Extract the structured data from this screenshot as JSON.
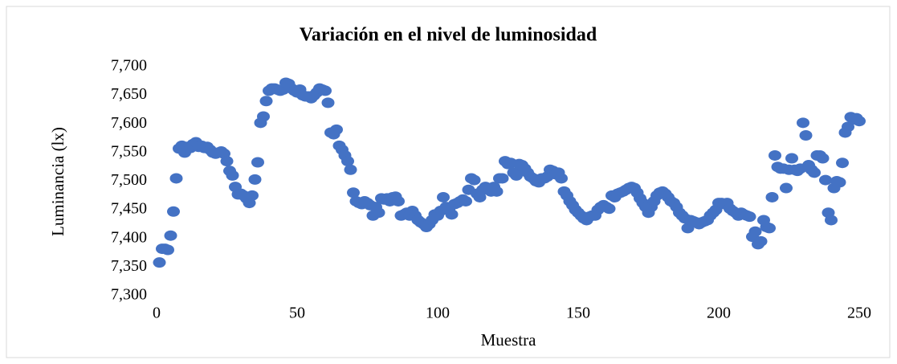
{
  "chart_data": {
    "type": "scatter",
    "title": "Variación en el nivel de luminosidad",
    "x_label": "Muestra",
    "y_label": "Luminancia (lx)",
    "color": "#4472c4",
    "xlim": [
      0,
      250
    ],
    "xticks": [
      0,
      50,
      100,
      150,
      200,
      250
    ],
    "ylim": [
      7300,
      7700
    ],
    "yticks": [
      {
        "value": 7300,
        "label": "7,300"
      },
      {
        "value": 7350,
        "label": "7,350"
      },
      {
        "value": 7400,
        "label": "7,400"
      },
      {
        "value": 7450,
        "label": "7,450"
      },
      {
        "value": 7500,
        "label": "7,500"
      },
      {
        "value": 7550,
        "label": "7,550"
      },
      {
        "value": 7600,
        "label": "7,600"
      },
      {
        "value": 7650,
        "label": "7,650"
      },
      {
        "value": 7700,
        "label": "7,700"
      }
    ],
    "grid": false,
    "x": [
      1,
      2,
      3,
      4,
      5,
      6,
      7,
      8,
      9,
      10,
      11,
      12,
      13,
      14,
      15,
      16,
      17,
      18,
      19,
      20,
      21,
      22,
      23,
      24,
      25,
      26,
      27,
      28,
      29,
      30,
      31,
      32,
      33,
      34,
      35,
      36,
      37,
      38,
      39,
      40,
      41,
      42,
      43,
      44,
      45,
      46,
      47,
      48,
      49,
      50,
      51,
      52,
      53,
      54,
      55,
      56,
      57,
      58,
      59,
      60,
      61,
      62,
      63,
      64,
      65,
      66,
      67,
      68,
      69,
      70,
      71,
      72,
      73,
      74,
      75,
      76,
      77,
      78,
      79,
      80,
      81,
      82,
      83,
      84,
      85,
      86,
      87,
      88,
      89,
      90,
      91,
      92,
      93,
      94,
      95,
      96,
      97,
      98,
      99,
      100,
      101,
      102,
      103,
      104,
      105,
      106,
      107,
      108,
      109,
      110,
      111,
      112,
      113,
      114,
      115,
      116,
      117,
      118,
      119,
      120,
      121,
      122,
      123,
      124,
      125,
      126,
      127,
      128,
      129,
      130,
      131,
      132,
      133,
      134,
      135,
      136,
      137,
      138,
      139,
      140,
      141,
      142,
      143,
      144,
      145,
      146,
      147,
      148,
      149,
      150,
      151,
      152,
      153,
      154,
      155,
      156,
      157,
      158,
      159,
      160,
      161,
      162,
      163,
      164,
      165,
      166,
      167,
      168,
      169,
      170,
      171,
      172,
      173,
      174,
      175,
      176,
      177,
      178,
      179,
      180,
      181,
      182,
      183,
      184,
      185,
      186,
      187,
      188,
      189,
      190,
      191,
      192,
      193,
      194,
      195,
      196,
      197,
      198,
      199,
      200,
      201,
      202,
      203,
      204,
      205,
      206,
      207,
      208,
      209,
      210,
      211,
      212,
      213,
      214,
      215,
      216,
      217,
      218,
      219,
      220,
      221,
      222,
      223,
      224,
      225,
      226,
      227,
      228,
      229,
      230,
      231,
      232,
      233,
      234,
      235,
      236,
      237,
      238,
      239,
      240,
      241,
      242,
      243,
      244,
      245,
      246,
      247,
      248,
      249,
      250
    ],
    "values": [
      7358,
      7382,
      7382,
      7380,
      7405,
      7447,
      7505,
      7557,
      7562,
      7550,
      7560,
      7558,
      7565,
      7568,
      7560,
      7562,
      7558,
      7560,
      7555,
      7550,
      7548,
      7550,
      7552,
      7548,
      7535,
      7518,
      7510,
      7490,
      7477,
      7478,
      7475,
      7470,
      7462,
      7475,
      7503,
      7533,
      7602,
      7613,
      7640,
      7658,
      7662,
      7662,
      7660,
      7658,
      7660,
      7672,
      7670,
      7662,
      7658,
      7655,
      7660,
      7650,
      7648,
      7648,
      7645,
      7650,
      7655,
      7662,
      7660,
      7658,
      7637,
      7585,
      7582,
      7590,
      7562,
      7555,
      7545,
      7535,
      7520,
      7480,
      7465,
      7462,
      7460,
      7465,
      7462,
      7458,
      7440,
      7455,
      7445,
      7470,
      7468,
      7470,
      7465,
      7472,
      7473,
      7465,
      7440,
      7442,
      7445,
      7440,
      7448,
      7440,
      7432,
      7428,
      7425,
      7420,
      7425,
      7432,
      7442,
      7440,
      7448,
      7472,
      7455,
      7450,
      7442,
      7460,
      7462,
      7465,
      7468,
      7465,
      7485,
      7505,
      7502,
      7478,
      7472,
      7485,
      7490,
      7488,
      7482,
      7490,
      7482,
      7505,
      7505,
      7535,
      7530,
      7532,
      7515,
      7510,
      7530,
      7528,
      7522,
      7515,
      7508,
      7505,
      7500,
      7498,
      7505,
      7505,
      7508,
      7520,
      7518,
      7512,
      7515,
      7505,
      7482,
      7475,
      7465,
      7458,
      7450,
      7445,
      7440,
      7435,
      7432,
      7438,
      7440,
      7440,
      7450,
      7455,
      7458,
      7455,
      7452,
      7475,
      7472,
      7478,
      7480,
      7482,
      7485,
      7488,
      7490,
      7488,
      7480,
      7470,
      7462,
      7455,
      7445,
      7455,
      7465,
      7475,
      7480,
      7482,
      7478,
      7472,
      7465,
      7462,
      7455,
      7445,
      7440,
      7435,
      7418,
      7432,
      7430,
      7428,
      7425,
      7428,
      7430,
      7432,
      7440,
      7445,
      7450,
      7462,
      7462,
      7460,
      7462,
      7452,
      7448,
      7445,
      7440,
      7445,
      7442,
      7440,
      7438,
      7403,
      7412,
      7390,
      7395,
      7432,
      7420,
      7418,
      7472,
      7545,
      7525,
      7522,
      7522,
      7488,
      7520,
      7540,
      7520,
      7518,
      7522,
      7602,
      7580,
      7528,
      7520,
      7515,
      7545,
      7545,
      7540,
      7502,
      7445,
      7432,
      7488,
      7500,
      7498,
      7532,
      7585,
      7595,
      7612,
      7608,
      7610,
      7605
    ]
  }
}
